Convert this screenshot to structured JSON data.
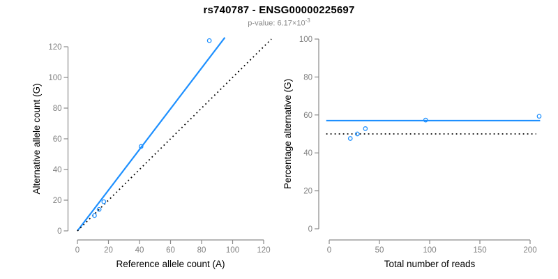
{
  "title": "rs740787 - ENSG00000225697",
  "subtitle": {
    "prefix": "p-value: 6.17×10",
    "exponent": "-3"
  },
  "colors": {
    "accent_blue": "#1E90FF",
    "axis_gray": "#8a8a8a",
    "tick_label_gray": "#808080",
    "axis_title_black": "#000000",
    "dotted_black": "#000000",
    "background": "#ffffff"
  },
  "chart_data": [
    {
      "name": "allele-counts",
      "type": "scatter",
      "xlabel": "Reference allele count (A)",
      "ylabel": "Alternative allele count (G)",
      "xlim": [
        0,
        120
      ],
      "ylim": [
        0,
        126
      ],
      "xticks": [
        0,
        20,
        40,
        60,
        80,
        100,
        120
      ],
      "yticks": [
        0,
        20,
        40,
        60,
        80,
        100,
        120
      ],
      "grid": false,
      "point_style": "open-circle",
      "point_color": "#1E90FF",
      "points": [
        {
          "x": 11,
          "y": 10
        },
        {
          "x": 14,
          "y": 14
        },
        {
          "x": 17,
          "y": 19
        },
        {
          "x": 41,
          "y": 55
        },
        {
          "x": 85,
          "y": 124
        }
      ],
      "lines": [
        {
          "name": "fitted-ratio-line",
          "style": "solid",
          "color": "#1E90FF",
          "x1": 0,
          "y1": 0,
          "x2": 95,
          "y2": 126
        },
        {
          "name": "identity-line",
          "style": "dotted",
          "color": "#000000",
          "x1": 0,
          "y1": 0,
          "x2": 125,
          "y2": 125
        }
      ]
    },
    {
      "name": "percentage-alternative",
      "type": "scatter",
      "xlabel": "Total number of reads",
      "ylabel": "Percentage alternative (G)",
      "xlim": [
        0,
        210
      ],
      "ylim": [
        0,
        100
      ],
      "xticks": [
        0,
        50,
        100,
        150,
        200
      ],
      "yticks": [
        0,
        20,
        40,
        60,
        80,
        100
      ],
      "grid": false,
      "point_style": "open-circle",
      "point_color": "#1E90FF",
      "points": [
        {
          "x": 21,
          "y": 47.6
        },
        {
          "x": 28,
          "y": 50.0
        },
        {
          "x": 36,
          "y": 52.8
        },
        {
          "x": 96,
          "y": 57.3
        },
        {
          "x": 209,
          "y": 59.3
        }
      ],
      "lines": [
        {
          "name": "mean-percentage-line",
          "style": "solid",
          "color": "#1E90FF",
          "x1": -3,
          "y1": 57,
          "x2": 210,
          "y2": 57
        },
        {
          "name": "null-50-percent-line",
          "style": "dotted",
          "color": "#000000",
          "x1": -3,
          "y1": 50,
          "x2": 206,
          "y2": 50
        }
      ]
    }
  ]
}
